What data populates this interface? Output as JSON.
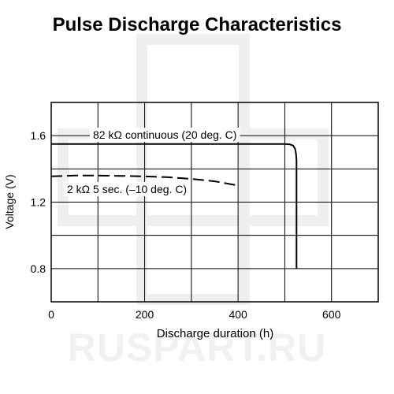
{
  "chart_data": {
    "type": "line",
    "title": "Pulse Discharge Characteristics",
    "xlabel": "Discharge duration (h)",
    "ylabel": "Voltage (V)",
    "xlim": [
      0,
      700
    ],
    "ylim": [
      0.6,
      1.8
    ],
    "x_ticks": [
      0,
      200,
      400,
      600
    ],
    "y_ticks": [
      0.8,
      1.2,
      1.6
    ],
    "x_grid": [
      0,
      100,
      200,
      300,
      400,
      500,
      600,
      700
    ],
    "y_grid": [
      0.6,
      0.8,
      1.0,
      1.2,
      1.4,
      1.6,
      1.8
    ],
    "grid": true,
    "series": [
      {
        "name": "82 kΩ continuous (20 deg. C)",
        "style": "solid",
        "color": "#000000",
        "x": [
          0,
          100,
          200,
          300,
          400,
          500,
          510,
          518,
          522,
          524,
          525,
          525
        ],
        "y": [
          1.55,
          1.55,
          1.55,
          1.55,
          1.55,
          1.55,
          1.548,
          1.54,
          1.52,
          1.49,
          1.45,
          0.8
        ]
      },
      {
        "name": "2 kΩ 5 sec. (–10 deg. C)",
        "style": "dashed",
        "color": "#000000",
        "x": [
          0,
          50,
          100,
          150,
          200,
          250,
          300,
          350,
          400
        ],
        "y": [
          1.355,
          1.36,
          1.36,
          1.358,
          1.355,
          1.35,
          1.34,
          1.325,
          1.3
        ]
      }
    ]
  },
  "watermark": "RUSPART.RU"
}
